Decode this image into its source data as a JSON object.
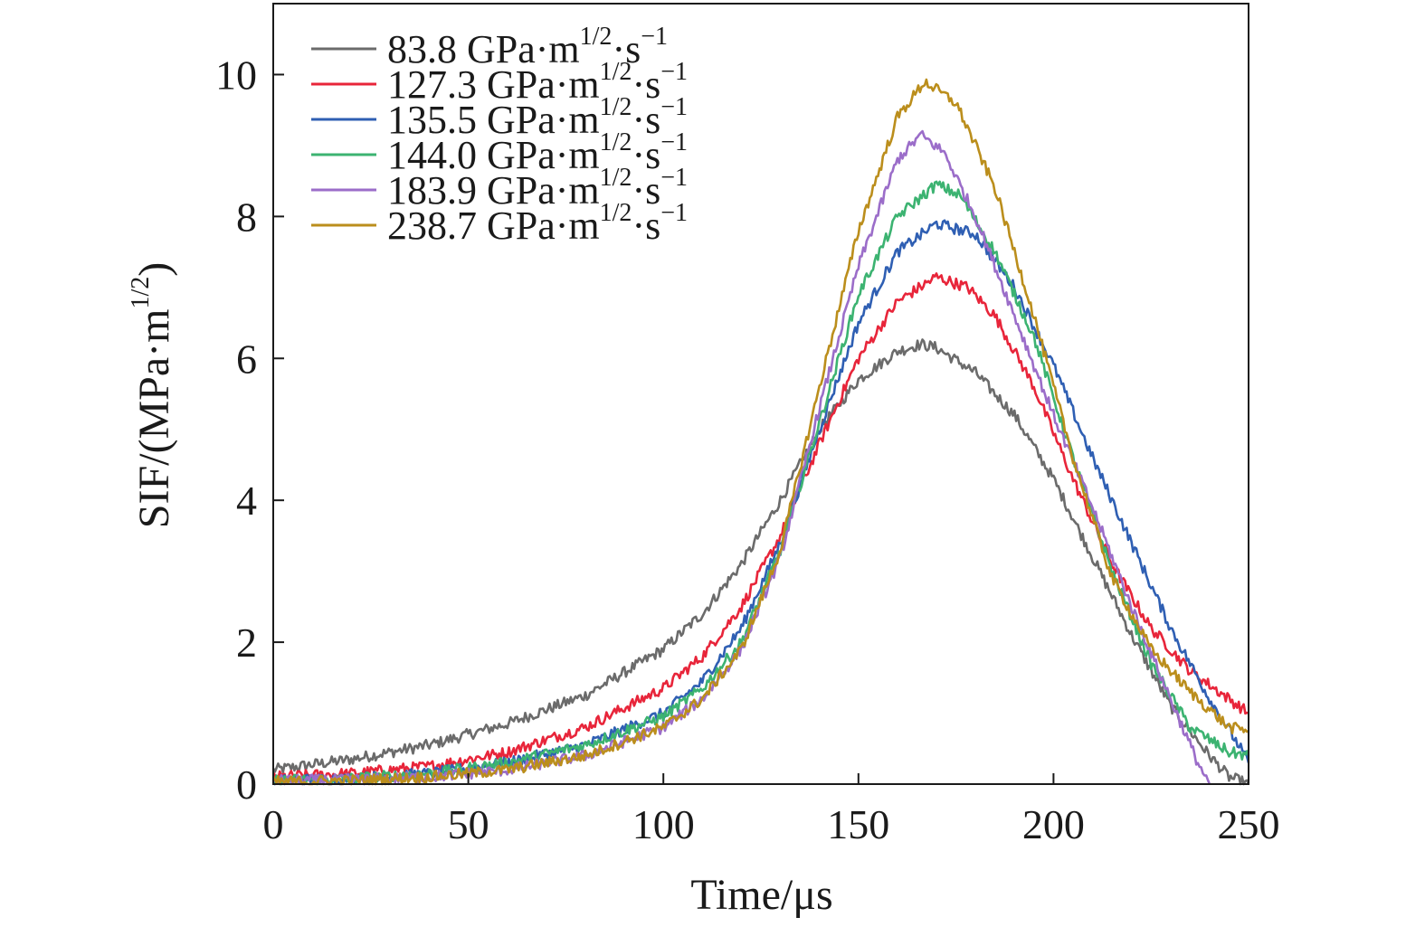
{
  "chart_data": {
    "type": "line",
    "xlabel": "Time/μs",
    "ylabel_main": "SIF/(MPa·m",
    "ylabel_sup": "1/2",
    "ylabel_close": ")",
    "xlim": [
      0,
      250
    ],
    "ylim": [
      0,
      11
    ],
    "xticks": [
      0,
      50,
      100,
      150,
      200,
      250
    ],
    "yticks": [
      0,
      2,
      4,
      6,
      8,
      10
    ],
    "grid": false,
    "legend_position": "top-left",
    "legend_unit_main": "GPa·m",
    "legend_unit_sup": "1/2",
    "legend_unit_tail": "·s",
    "legend_unit_tail_sup": "−1",
    "series": [
      {
        "name": "83.8",
        "color": "#6b6b6b",
        "points": [
          [
            0,
            0.2
          ],
          [
            20,
            0.35
          ],
          [
            40,
            0.55
          ],
          [
            60,
            0.85
          ],
          [
            80,
            1.25
          ],
          [
            100,
            1.9
          ],
          [
            110,
            2.4
          ],
          [
            120,
            3.1
          ],
          [
            130,
            4.0
          ],
          [
            140,
            5.0
          ],
          [
            150,
            5.7
          ],
          [
            160,
            6.1
          ],
          [
            166,
            6.2
          ],
          [
            170,
            6.15
          ],
          [
            180,
            5.8
          ],
          [
            190,
            5.2
          ],
          [
            200,
            4.3
          ],
          [
            210,
            3.2
          ],
          [
            220,
            2.1
          ],
          [
            230,
            1.1
          ],
          [
            240,
            0.4
          ],
          [
            245,
            0.1
          ],
          [
            250,
            0.0
          ]
        ]
      },
      {
        "name": "127.3",
        "color": "#e8253a",
        "points": [
          [
            0,
            0.1
          ],
          [
            20,
            0.15
          ],
          [
            40,
            0.25
          ],
          [
            60,
            0.45
          ],
          [
            80,
            0.8
          ],
          [
            100,
            1.35
          ],
          [
            110,
            1.8
          ],
          [
            120,
            2.5
          ],
          [
            130,
            3.5
          ],
          [
            140,
            4.8
          ],
          [
            150,
            6.0
          ],
          [
            160,
            6.8
          ],
          [
            170,
            7.15
          ],
          [
            178,
            7.0
          ],
          [
            185,
            6.6
          ],
          [
            195,
            5.6
          ],
          [
            205,
            4.3
          ],
          [
            215,
            3.1
          ],
          [
            225,
            2.2
          ],
          [
            235,
            1.6
          ],
          [
            245,
            1.2
          ],
          [
            250,
            1.0
          ]
        ]
      },
      {
        "name": "135.5",
        "color": "#2f5fb3",
        "points": [
          [
            0,
            0.05
          ],
          [
            20,
            0.08
          ],
          [
            40,
            0.15
          ],
          [
            60,
            0.3
          ],
          [
            80,
            0.55
          ],
          [
            100,
            1.0
          ],
          [
            110,
            1.45
          ],
          [
            120,
            2.2
          ],
          [
            130,
            3.4
          ],
          [
            140,
            5.0
          ],
          [
            150,
            6.5
          ],
          [
            160,
            7.5
          ],
          [
            170,
            7.9
          ],
          [
            180,
            7.75
          ],
          [
            190,
            7.0
          ],
          [
            200,
            5.9
          ],
          [
            210,
            4.6
          ],
          [
            220,
            3.4
          ],
          [
            230,
            2.2
          ],
          [
            240,
            1.2
          ],
          [
            248,
            0.5
          ],
          [
            250,
            0.3
          ]
        ]
      },
      {
        "name": "144.0",
        "color": "#3cb371",
        "points": [
          [
            0,
            0.05
          ],
          [
            20,
            0.08
          ],
          [
            40,
            0.15
          ],
          [
            60,
            0.3
          ],
          [
            80,
            0.55
          ],
          [
            100,
            0.95
          ],
          [
            110,
            1.35
          ],
          [
            120,
            2.0
          ],
          [
            130,
            3.3
          ],
          [
            140,
            5.1
          ],
          [
            150,
            6.9
          ],
          [
            160,
            8.0
          ],
          [
            170,
            8.45
          ],
          [
            176,
            8.3
          ],
          [
            185,
            7.5
          ],
          [
            195,
            6.3
          ],
          [
            205,
            4.6
          ],
          [
            215,
            3.0
          ],
          [
            225,
            1.7
          ],
          [
            235,
            0.8
          ],
          [
            245,
            0.45
          ],
          [
            250,
            0.4
          ]
        ]
      },
      {
        "name": "183.9",
        "color": "#9b6dc9",
        "points": [
          [
            0,
            0.05
          ],
          [
            20,
            0.06
          ],
          [
            40,
            0.1
          ],
          [
            60,
            0.2
          ],
          [
            80,
            0.4
          ],
          [
            100,
            0.8
          ],
          [
            110,
            1.2
          ],
          [
            120,
            1.9
          ],
          [
            130,
            3.2
          ],
          [
            140,
            5.3
          ],
          [
            150,
            7.3
          ],
          [
            160,
            8.8
          ],
          [
            166,
            9.15
          ],
          [
            172,
            8.9
          ],
          [
            180,
            8.0
          ],
          [
            190,
            6.6
          ],
          [
            200,
            5.2
          ],
          [
            210,
            3.9
          ],
          [
            220,
            2.5
          ],
          [
            230,
            1.2
          ],
          [
            237,
            0.3
          ],
          [
            240,
            0.0
          ]
        ]
      },
      {
        "name": "238.7",
        "color": "#bb8e1c",
        "points": [
          [
            0,
            0.03
          ],
          [
            20,
            0.05
          ],
          [
            40,
            0.1
          ],
          [
            60,
            0.2
          ],
          [
            80,
            0.4
          ],
          [
            100,
            0.8
          ],
          [
            110,
            1.2
          ],
          [
            120,
            1.9
          ],
          [
            130,
            3.3
          ],
          [
            140,
            5.6
          ],
          [
            150,
            7.8
          ],
          [
            160,
            9.4
          ],
          [
            167,
            9.9
          ],
          [
            175,
            9.6
          ],
          [
            185,
            8.4
          ],
          [
            195,
            6.6
          ],
          [
            205,
            4.6
          ],
          [
            215,
            2.9
          ],
          [
            225,
            1.9
          ],
          [
            235,
            1.3
          ],
          [
            245,
            0.8
          ],
          [
            250,
            0.75
          ]
        ]
      }
    ]
  }
}
